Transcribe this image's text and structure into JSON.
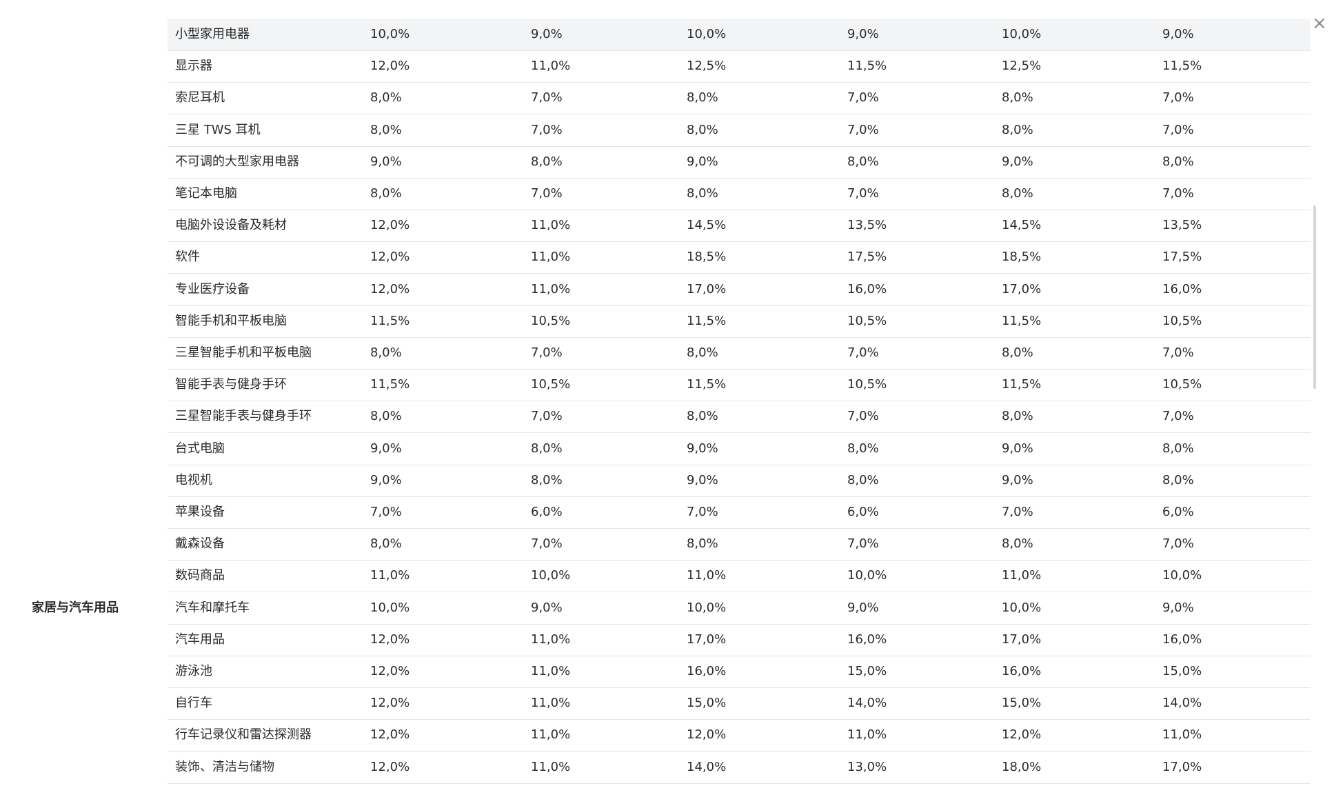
{
  "table": {
    "rows": [
      [
        null,
        "小型家用电器",
        "10,0%",
        "9,0%",
        "10,0%",
        "9,0%",
        "10,0%",
        "9,0%"
      ],
      [
        null,
        "显示器",
        "12,0%",
        "11,0%",
        "12,5%",
        "11,5%",
        "12,5%",
        "11,5%"
      ],
      [
        null,
        "索尼耳机",
        "8,0%",
        "7,0%",
        "8,0%",
        "7,0%",
        "8,0%",
        "7,0%"
      ],
      [
        null,
        "三星 TWS 耳机",
        "8,0%",
        "7,0%",
        "8,0%",
        "7,0%",
        "8,0%",
        "7,0%"
      ],
      [
        null,
        "不可调的大型家用电器",
        "9,0%",
        "8,0%",
        "9,0%",
        "8,0%",
        "9,0%",
        "8,0%"
      ],
      [
        null,
        "笔记本电脑",
        "8,0%",
        "7,0%",
        "8,0%",
        "7,0%",
        "8,0%",
        "7,0%"
      ],
      [
        null,
        "电脑外设设备及耗材",
        "12,0%",
        "11,0%",
        "14,5%",
        "13,5%",
        "14,5%",
        "13,5%"
      ],
      [
        null,
        "软件",
        "12,0%",
        "11,0%",
        "18,5%",
        "17,5%",
        "18,5%",
        "17,5%"
      ],
      [
        null,
        "专业医疗设备",
        "12,0%",
        "11,0%",
        "17,0%",
        "16,0%",
        "17,0%",
        "16,0%"
      ],
      [
        null,
        "智能手机和平板电脑",
        "11,5%",
        "10,5%",
        "11,5%",
        "10,5%",
        "11,5%",
        "10,5%"
      ],
      [
        null,
        "三星智能手机和平板电脑",
        "8,0%",
        "7,0%",
        "8,0%",
        "7,0%",
        "8,0%",
        "7,0%"
      ],
      [
        null,
        "智能手表与健身手环",
        "11,5%",
        "10,5%",
        "11,5%",
        "10,5%",
        "11,5%",
        "10,5%"
      ],
      [
        null,
        "三星智能手表与健身手环",
        "8,0%",
        "7,0%",
        "8,0%",
        "7,0%",
        "8,0%",
        "7,0%"
      ],
      [
        null,
        "台式电脑",
        "9,0%",
        "8,0%",
        "9,0%",
        "8,0%",
        "9,0%",
        "8,0%"
      ],
      [
        null,
        "电视机",
        "9,0%",
        "8,0%",
        "9,0%",
        "8,0%",
        "9,0%",
        "8,0%"
      ],
      [
        null,
        "苹果设备",
        "7,0%",
        "6,0%",
        "7,0%",
        "6,0%",
        "7,0%",
        "6,0%"
      ],
      [
        null,
        "戴森设备",
        "8,0%",
        "7,0%",
        "8,0%",
        "7,0%",
        "8,0%",
        "7,0%"
      ],
      [
        null,
        "数码商品",
        "11,0%",
        "10,0%",
        "11,0%",
        "10,0%",
        "11,0%",
        "10,0%"
      ],
      [
        "家居与汽车用品",
        "汽车和摩托车",
        "10,0%",
        "9,0%",
        "10,0%",
        "9,0%",
        "10,0%",
        "9,0%"
      ],
      [
        null,
        "汽车用品",
        "12,0%",
        "11,0%",
        "17,0%",
        "16,0%",
        "17,0%",
        "16,0%"
      ],
      [
        null,
        "游泳池",
        "12,0%",
        "11,0%",
        "16,0%",
        "15,0%",
        "16,0%",
        "15,0%"
      ],
      [
        null,
        "自行车",
        "12,0%",
        "11,0%",
        "15,0%",
        "14,0%",
        "15,0%",
        "14,0%"
      ],
      [
        null,
        "行车记录仪和雷达探测器",
        "12,0%",
        "11,0%",
        "12,0%",
        "11,0%",
        "12,0%",
        "11,0%"
      ],
      [
        null,
        "装饰、清洁与储物",
        "12,0%",
        "11,0%",
        "14,0%",
        "13,0%",
        "18,0%",
        "17,0%"
      ]
    ]
  }
}
